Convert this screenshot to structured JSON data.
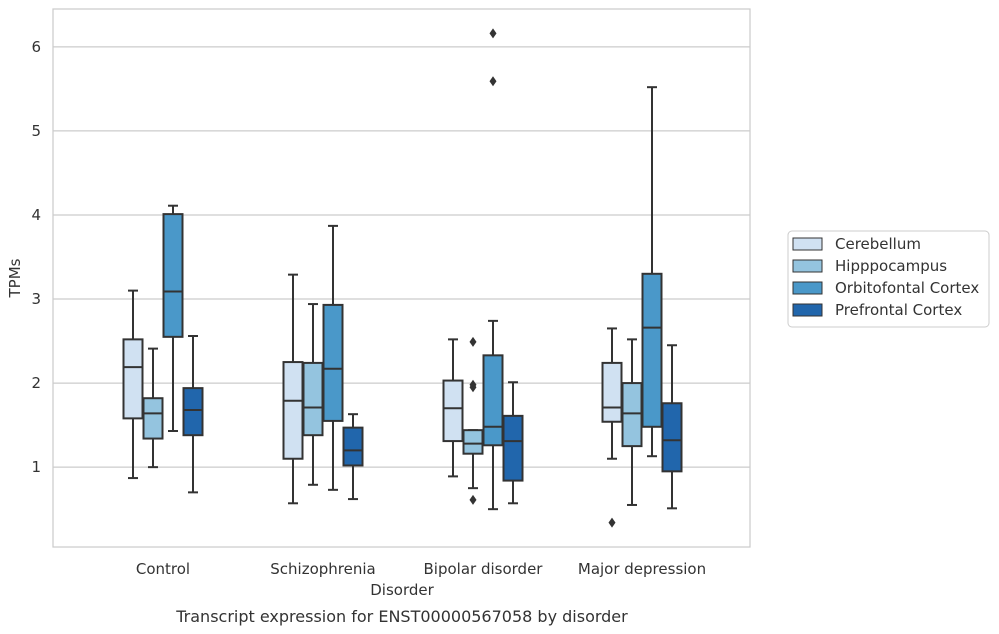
{
  "chart_data": {
    "type": "box",
    "caption": "Transcript expression for ENST00000567058 by disorder",
    "xlabel": "Disorder",
    "ylabel": "TPMs",
    "ylim": [
      0.05,
      6.45
    ],
    "yticks": [
      1,
      2,
      3,
      4,
      5,
      6
    ],
    "grid": "horizontal",
    "legend_position": "right",
    "categories": [
      "Control",
      "Schizophrenia",
      "Bipolar disorder",
      "Major depression"
    ],
    "series": [
      {
        "name": "Cerebellum",
        "color": "#d0e1f2",
        "boxes": [
          {
            "whislo": 0.87,
            "q1": 1.58,
            "med": 2.19,
            "q3": 2.52,
            "whishi": 3.1,
            "fliers": []
          },
          {
            "whislo": 0.57,
            "q1": 1.1,
            "med": 1.79,
            "q3": 2.25,
            "whishi": 3.29,
            "fliers": []
          },
          {
            "whislo": 0.89,
            "q1": 1.31,
            "med": 1.7,
            "q3": 2.03,
            "whishi": 2.52,
            "fliers": []
          },
          {
            "whislo": 1.1,
            "q1": 1.54,
            "med": 1.71,
            "q3": 2.24,
            "whishi": 2.65,
            "fliers": [
              0.34
            ]
          }
        ]
      },
      {
        "name": "Hipppocampus",
        "color": "#94c4df",
        "boxes": [
          {
            "whislo": 1.0,
            "q1": 1.34,
            "med": 1.64,
            "q3": 1.82,
            "whishi": 2.41,
            "fliers": []
          },
          {
            "whislo": 0.79,
            "q1": 1.38,
            "med": 1.71,
            "q3": 2.24,
            "whishi": 2.94,
            "fliers": []
          },
          {
            "whislo": 0.75,
            "q1": 1.16,
            "med": 1.28,
            "q3": 1.44,
            "whishi": 1.44,
            "fliers": [
              2.49,
              1.98,
              1.95,
              0.61
            ]
          },
          {
            "whislo": 0.55,
            "q1": 1.25,
            "med": 1.64,
            "q3": 2.0,
            "whishi": 2.52,
            "fliers": []
          }
        ]
      },
      {
        "name": "Orbitofontal Cortex",
        "color": "#4a98c9",
        "boxes": [
          {
            "whislo": 1.43,
            "q1": 2.55,
            "med": 3.09,
            "q3": 4.01,
            "whishi": 4.11,
            "fliers": []
          },
          {
            "whislo": 0.73,
            "q1": 1.55,
            "med": 2.17,
            "q3": 2.93,
            "whishi": 3.87,
            "fliers": []
          },
          {
            "whislo": 0.5,
            "q1": 1.26,
            "med": 1.48,
            "q3": 2.33,
            "whishi": 2.74,
            "fliers": [
              6.16,
              5.59
            ]
          },
          {
            "whislo": 1.13,
            "q1": 1.48,
            "med": 2.66,
            "q3": 3.3,
            "whishi": 5.52,
            "fliers": []
          }
        ]
      },
      {
        "name": "Prefrontal Cortex",
        "color": "#2166ac",
        "boxes": [
          {
            "whislo": 0.7,
            "q1": 1.38,
            "med": 1.68,
            "q3": 1.94,
            "whishi": 2.56,
            "fliers": []
          },
          {
            "whislo": 0.62,
            "q1": 1.02,
            "med": 1.2,
            "q3": 1.47,
            "whishi": 1.63,
            "fliers": []
          },
          {
            "whislo": 0.57,
            "q1": 0.84,
            "med": 1.31,
            "q3": 1.61,
            "whishi": 2.01,
            "fliers": []
          },
          {
            "whislo": 0.51,
            "q1": 0.95,
            "med": 1.32,
            "q3": 1.76,
            "whishi": 2.45,
            "fliers": []
          }
        ]
      }
    ]
  }
}
